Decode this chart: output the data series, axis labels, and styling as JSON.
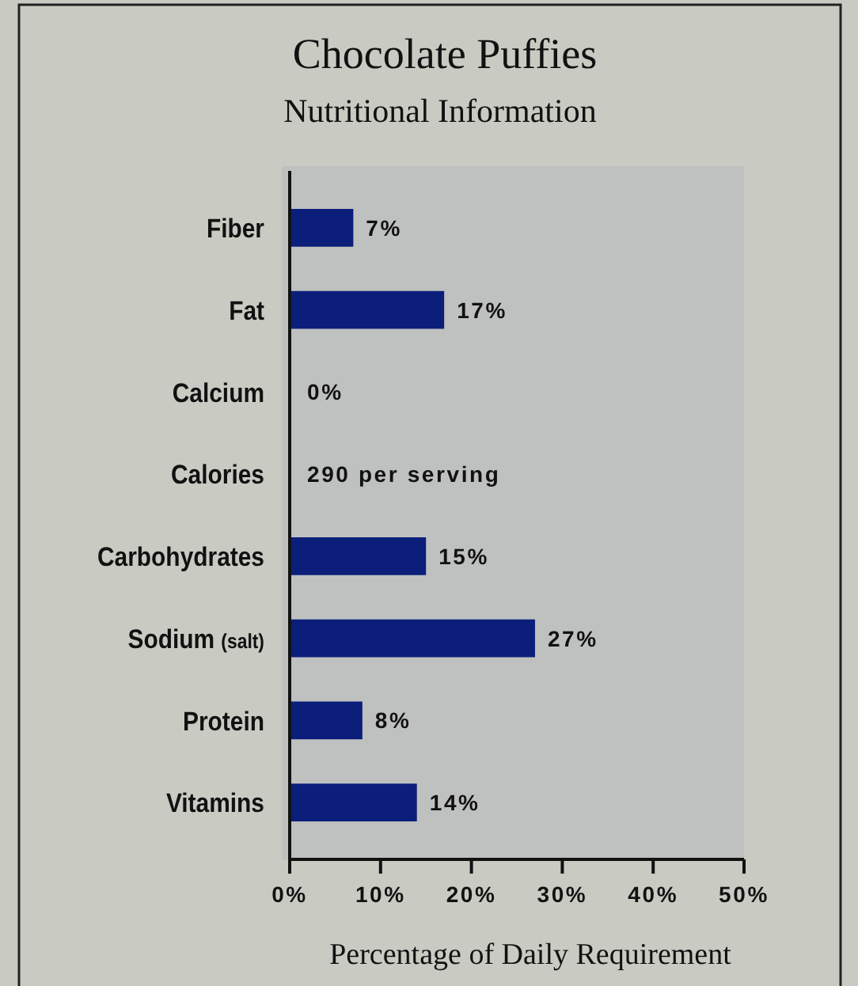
{
  "chart_data": {
    "type": "bar",
    "orientation": "horizontal",
    "title": "Chocolate Puffies",
    "subtitle": "Nutritional Information",
    "xlabel": "Percentage of Daily Requirement",
    "categories": [
      "Fiber",
      "Fat",
      "Calcium",
      "Calories",
      "Carbohydrates",
      "Sodium (salt)",
      "Protein",
      "Vitamins"
    ],
    "values": [
      7,
      17,
      0,
      null,
      15,
      27,
      8,
      14
    ],
    "value_labels": [
      "7%",
      "17%",
      "0%",
      "290 per serving",
      "15%",
      "27%",
      "8%",
      "14%"
    ],
    "color": "#0b1e7a",
    "xlim": [
      0,
      50
    ],
    "xticks": [
      {
        "value": 0,
        "label": "0%"
      },
      {
        "value": 10,
        "label": "10%"
      },
      {
        "value": 20,
        "label": "20%"
      },
      {
        "value": 30,
        "label": "30%"
      },
      {
        "value": 40,
        "label": "40%"
      },
      {
        "value": 50,
        "label": "50%"
      }
    ]
  }
}
